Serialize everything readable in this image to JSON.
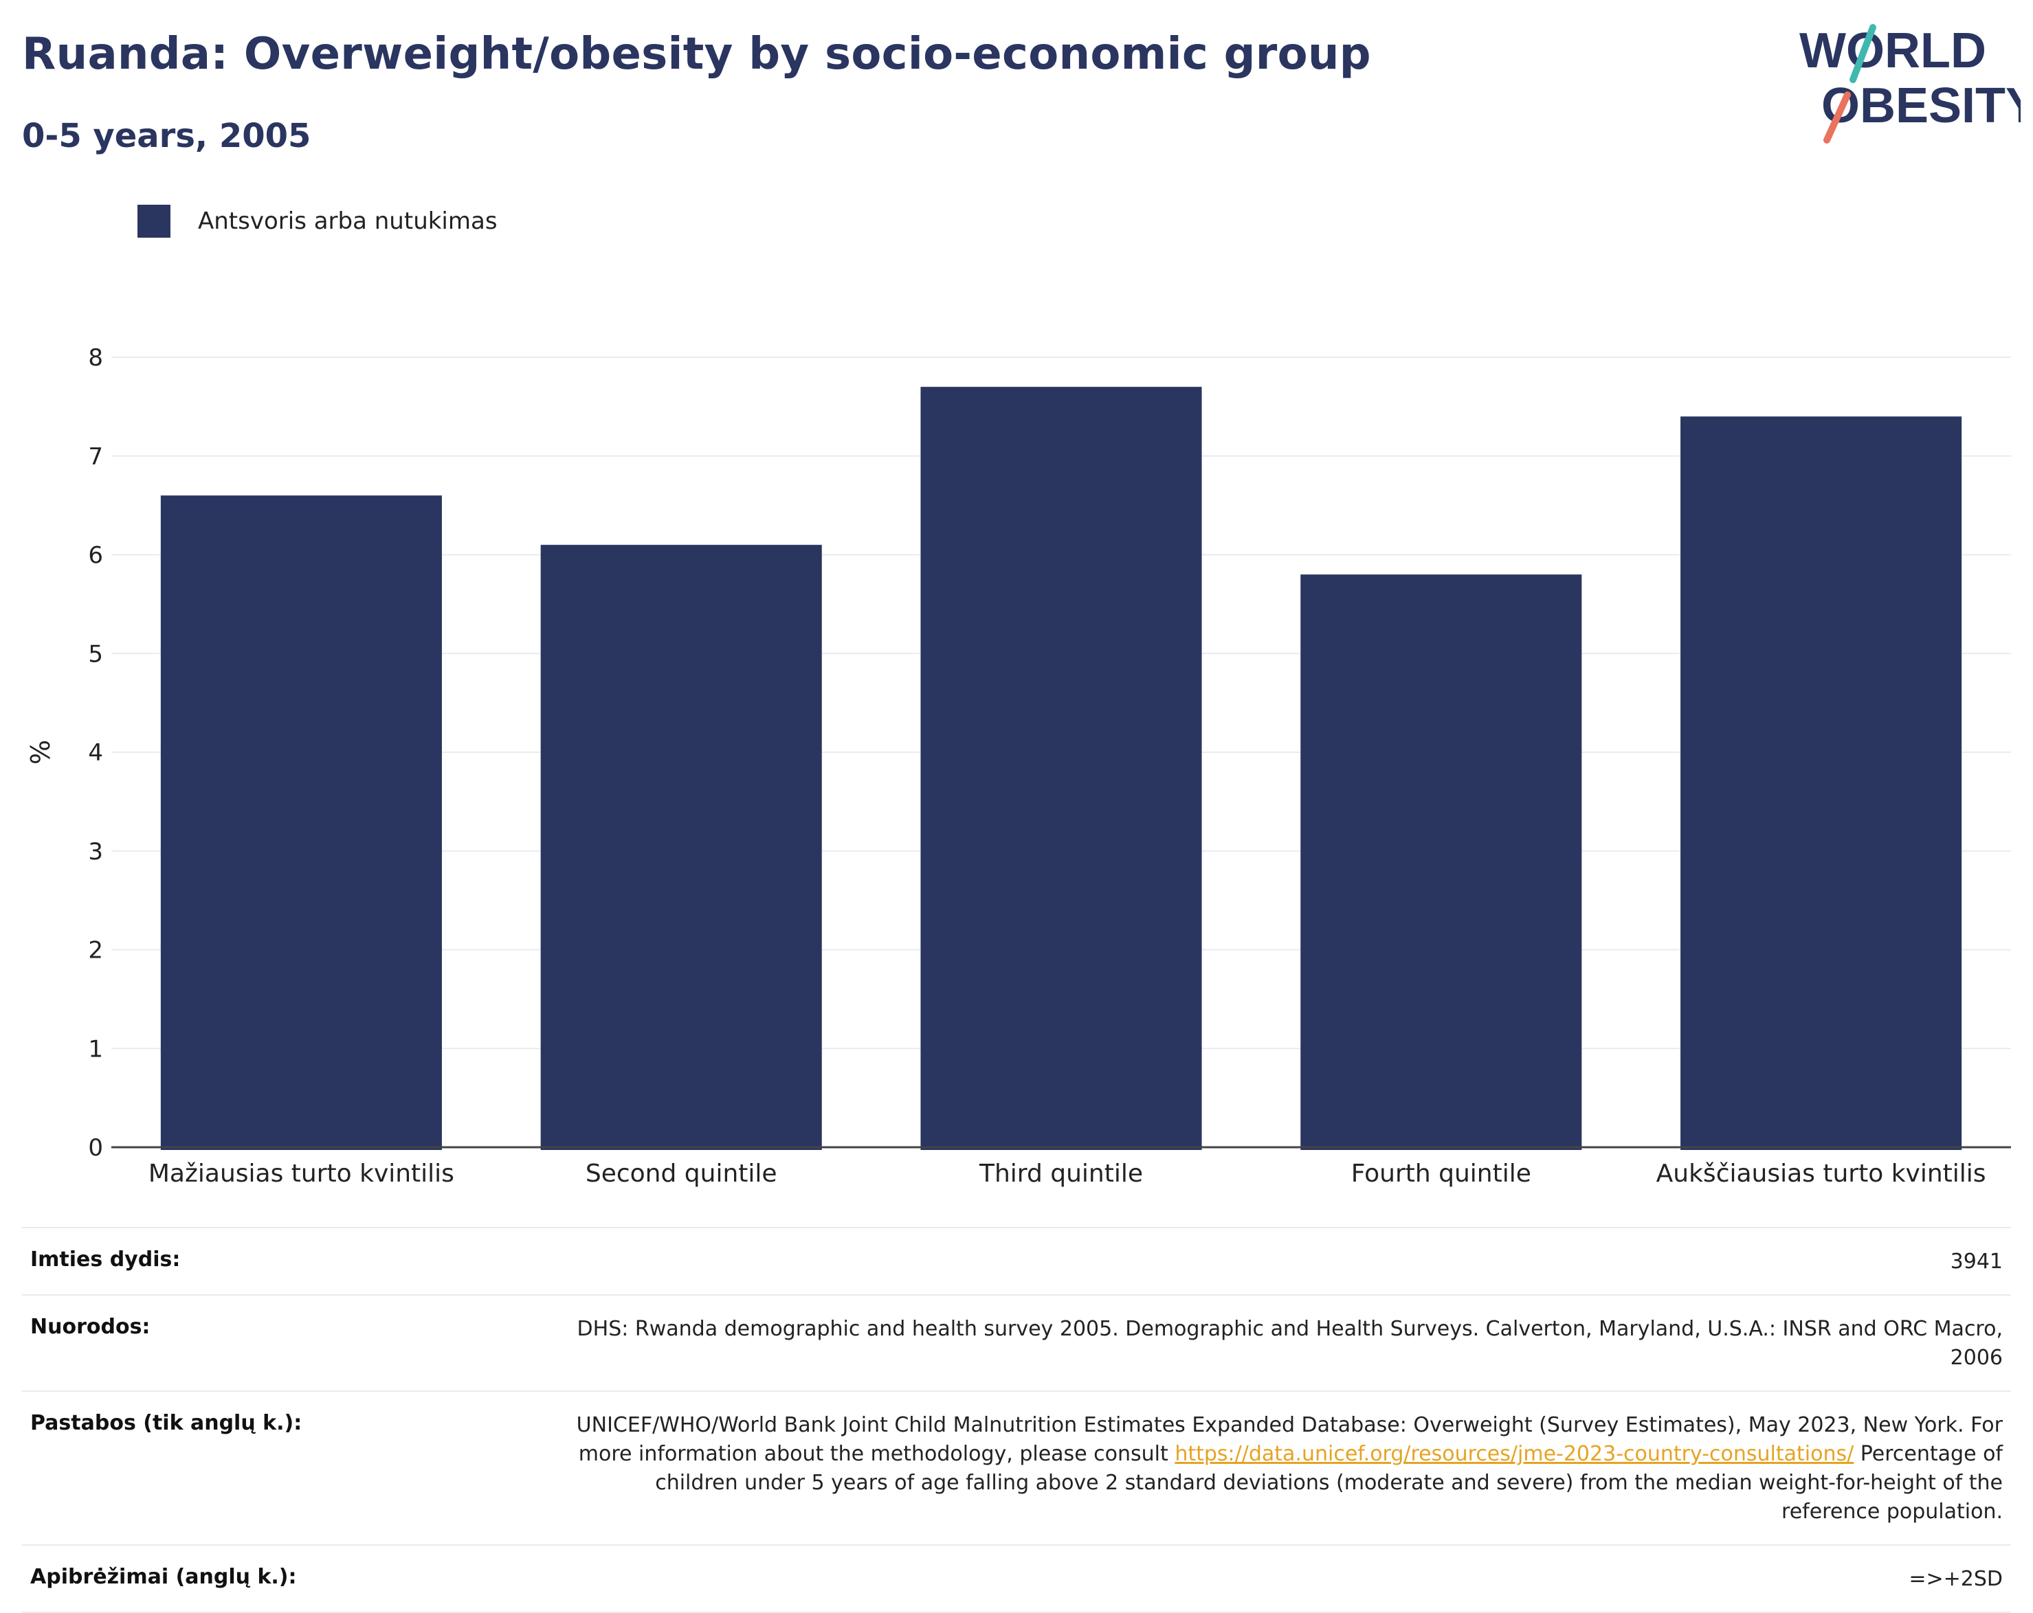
{
  "header": {
    "title": "Ruanda: Overweight/obesity by socio-economic group",
    "subtitle": "0-5 years, 2005"
  },
  "logo": {
    "line1": "WORLD",
    "line2": "OBESITY",
    "accent_colors": [
      "#3fb8b0",
      "#e9735e"
    ]
  },
  "legend": {
    "items": [
      {
        "label": "Antsvoris arba nutukimas",
        "color": "#2a3560"
      }
    ],
    "placement": "top-left"
  },
  "chart_data": {
    "type": "bar",
    "categories": [
      "Mažiausias turto kvintilis",
      "Second quintile",
      "Third quintile",
      "Fourth quintile",
      "Aukščiausias turto kvintilis"
    ],
    "series": [
      {
        "name": "Antsvoris arba nutukimas",
        "values": [
          6.6,
          6.1,
          7.7,
          5.8,
          7.4
        ],
        "color": "#2a3560"
      }
    ],
    "ylabel": "%",
    "xlabel": "",
    "ylim": [
      0,
      8
    ],
    "yticks": [
      "0",
      "1",
      "2",
      "3",
      "4",
      "5",
      "6",
      "7",
      "8"
    ],
    "grid": true
  },
  "meta": {
    "sample_size_label": "Imties dydis:",
    "sample_size_value": "3941",
    "references_label": "Nuorodos:",
    "references_value": "DHS: Rwanda demographic and health survey 2005. Demographic and Health Surveys. Calverton, Maryland, U.S.A.: INSR and ORC Macro, 2006",
    "notes_label": "Pastabos (tik anglų k.):",
    "notes_text_before": "UNICEF/WHO/World Bank Joint Child Malnutrition Estimates Expanded Database: Overweight (Survey Estimates), May 2023, New York. For more information about the methodology, please consult ",
    "notes_link": "https://data.unicef.org/resources/jme-2023-country-consultations/",
    "notes_text_after": " Percentage of children under 5 years of age falling above 2 standard deviations (moderate and severe) from the median weight-for-height of the reference population.",
    "definitions_label": "Apibrėžimai (anglų k.):",
    "definitions_value": "=>+2SD"
  }
}
